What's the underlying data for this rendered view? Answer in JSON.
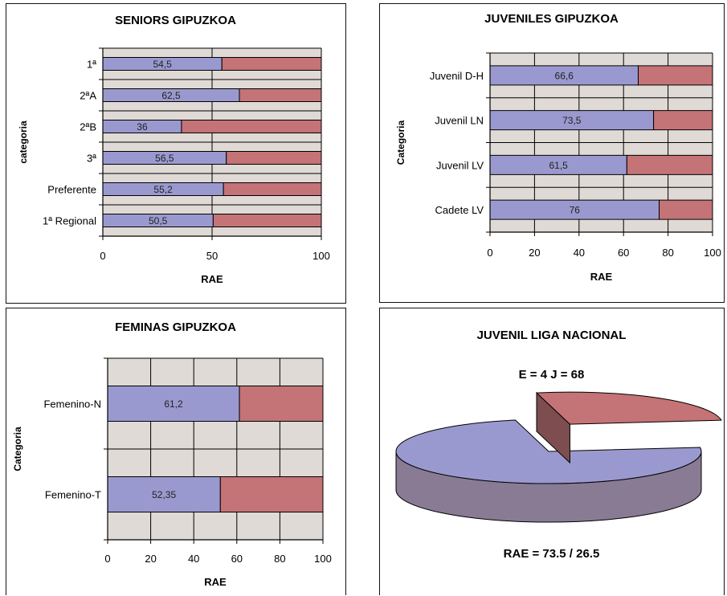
{
  "colors": {
    "primary": "#9a99cf",
    "secondary": "#c47377",
    "plot_bg": "#dfdad5",
    "pie_primary_side": "#897b94",
    "pie_secondary_side": "#7d4d50"
  },
  "chart_data": [
    {
      "id": "seniors",
      "type": "bar",
      "orientation": "horizontal",
      "stacked": true,
      "title": "SENIORS GIPUZKOA",
      "xlabel": "RAE",
      "ylabel": "categoria",
      "xlim": [
        0,
        100
      ],
      "xticks": [
        "0",
        "50",
        "100"
      ],
      "categories": [
        "1ª",
        "2ªA",
        "2ªB",
        "3ª",
        "Preferente",
        "1ª Regional"
      ],
      "values": [
        54.5,
        62.5,
        36,
        56.5,
        55.2,
        50.5
      ],
      "value_labels": [
        "54,5",
        "62,5",
        "36",
        "56,5",
        "55,2",
        "50,5"
      ],
      "remainder_total": 100
    },
    {
      "id": "juveniles",
      "type": "bar",
      "orientation": "horizontal",
      "stacked": true,
      "title": "JUVENILES GIPUZKOA",
      "xlabel": "RAE",
      "ylabel": "Categoria",
      "xlim": [
        0,
        100
      ],
      "xticks": [
        "0",
        "20",
        "40",
        "60",
        "80",
        "100"
      ],
      "categories": [
        "Juvenil D-H",
        "Juvenil LN",
        "Juvenil LV",
        "Cadete LV"
      ],
      "values": [
        66.6,
        73.5,
        61.5,
        76
      ],
      "value_labels": [
        "66,6",
        "73,5",
        "61,5",
        "76"
      ],
      "remainder_total": 100
    },
    {
      "id": "feminas",
      "type": "bar",
      "orientation": "horizontal",
      "stacked": true,
      "title": "FEMINAS GIPUZKOA",
      "xlabel": "RAE",
      "ylabel": "Categoria",
      "xlim": [
        0,
        100
      ],
      "xticks": [
        "0",
        "20",
        "40",
        "60",
        "80",
        "100"
      ],
      "categories": [
        "Femenino-N",
        "Femenino-T"
      ],
      "values": [
        61.2,
        52.35
      ],
      "value_labels": [
        "61,2",
        "52,35"
      ],
      "remainder_total": 100
    },
    {
      "id": "liga",
      "type": "pie",
      "title": "JUVENIL LIGA NACIONAL",
      "subtitle": "E = 4    J = 68",
      "footer": "RAE = 73.5 / 26.5",
      "values": [
        73.5,
        26.5
      ],
      "exploded_slice": 1
    }
  ]
}
